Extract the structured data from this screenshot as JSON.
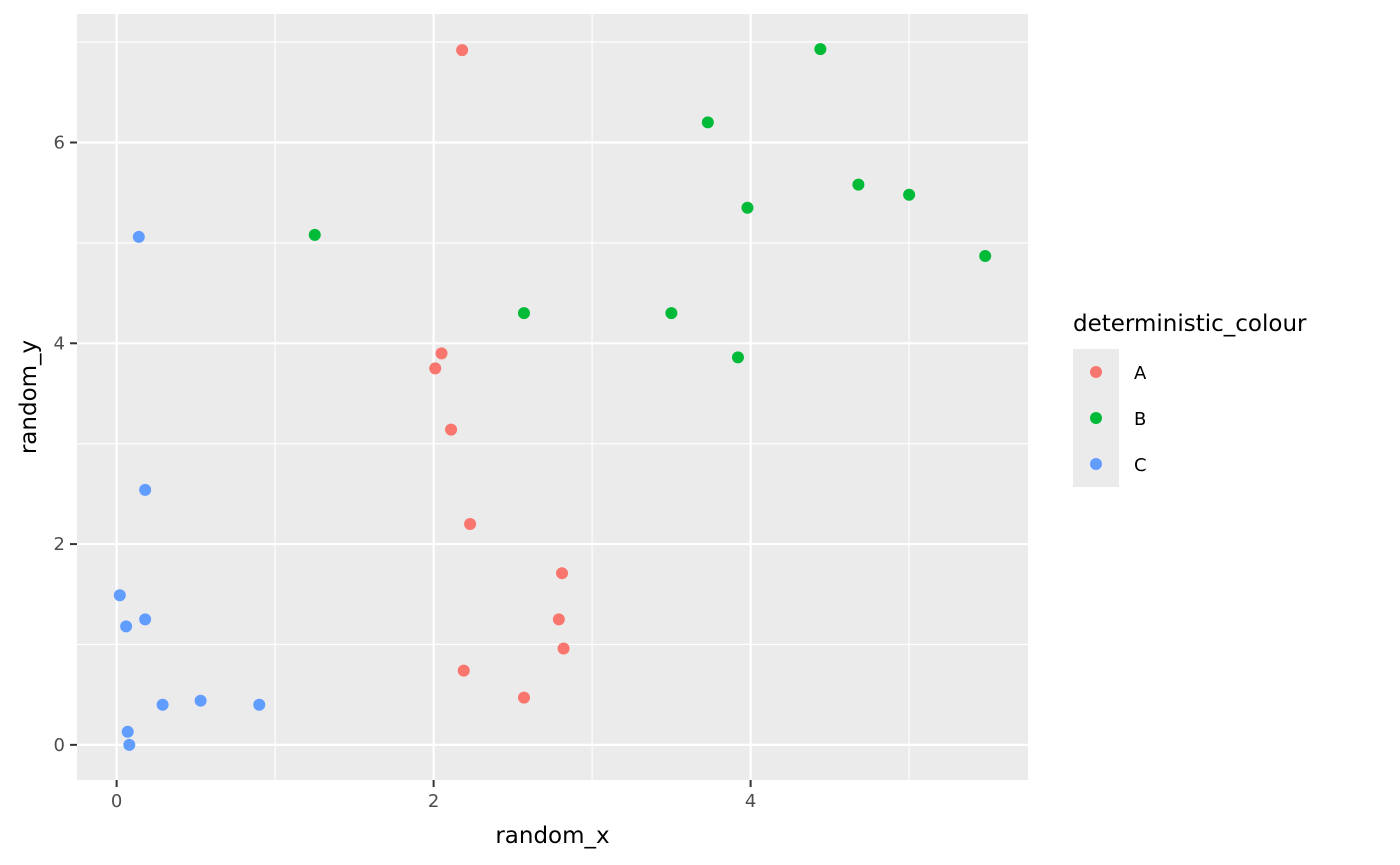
{
  "chart_data": {
    "type": "scatter",
    "xlabel": "random_x",
    "ylabel": "random_y",
    "xlim": [
      -0.25,
      5.75
    ],
    "ylim": [
      -0.35,
      7.28
    ],
    "x_ticks": [
      0,
      2,
      4
    ],
    "x_tick_labels": [
      "0",
      "2",
      "4"
    ],
    "x_minor_ticks": [
      1,
      3,
      5
    ],
    "y_ticks": [
      0,
      2,
      4,
      6
    ],
    "y_tick_labels": [
      "0",
      "2",
      "4",
      "6"
    ],
    "y_minor_ticks": [
      1,
      3,
      5,
      7
    ],
    "grid": true,
    "panel_background": "#ebebeb",
    "gridline_color": "#ffffff",
    "legend": {
      "title": "deterministic_colour",
      "placement": "right",
      "entries": [
        "A",
        "B",
        "C"
      ]
    },
    "series": [
      {
        "name": "A",
        "color": "#F8766D",
        "points": [
          {
            "x": 2.18,
            "y": 6.92
          },
          {
            "x": 2.05,
            "y": 3.9
          },
          {
            "x": 2.01,
            "y": 3.75
          },
          {
            "x": 2.11,
            "y": 3.14
          },
          {
            "x": 2.23,
            "y": 2.2
          },
          {
            "x": 2.81,
            "y": 1.71
          },
          {
            "x": 2.79,
            "y": 1.25
          },
          {
            "x": 2.82,
            "y": 0.96
          },
          {
            "x": 2.19,
            "y": 0.74
          },
          {
            "x": 2.57,
            "y": 0.47
          }
        ]
      },
      {
        "name": "B",
        "color": "#00BA38",
        "points": [
          {
            "x": 4.44,
            "y": 6.93
          },
          {
            "x": 3.73,
            "y": 6.2
          },
          {
            "x": 4.68,
            "y": 5.58
          },
          {
            "x": 5.0,
            "y": 5.48
          },
          {
            "x": 3.98,
            "y": 5.35
          },
          {
            "x": 1.25,
            "y": 5.08
          },
          {
            "x": 5.48,
            "y": 4.87
          },
          {
            "x": 2.57,
            "y": 4.3
          },
          {
            "x": 3.5,
            "y": 4.3
          },
          {
            "x": 3.92,
            "y": 3.86
          }
        ]
      },
      {
        "name": "C",
        "color": "#619CFF",
        "points": [
          {
            "x": 0.14,
            "y": 5.06
          },
          {
            "x": 0.18,
            "y": 2.54
          },
          {
            "x": 0.02,
            "y": 1.49
          },
          {
            "x": 0.18,
            "y": 1.25
          },
          {
            "x": 0.06,
            "y": 1.18
          },
          {
            "x": 0.53,
            "y": 0.44
          },
          {
            "x": 0.29,
            "y": 0.4
          },
          {
            "x": 0.9,
            "y": 0.4
          },
          {
            "x": 0.07,
            "y": 0.13
          },
          {
            "x": 0.08,
            "y": 0.0
          }
        ]
      }
    ]
  }
}
